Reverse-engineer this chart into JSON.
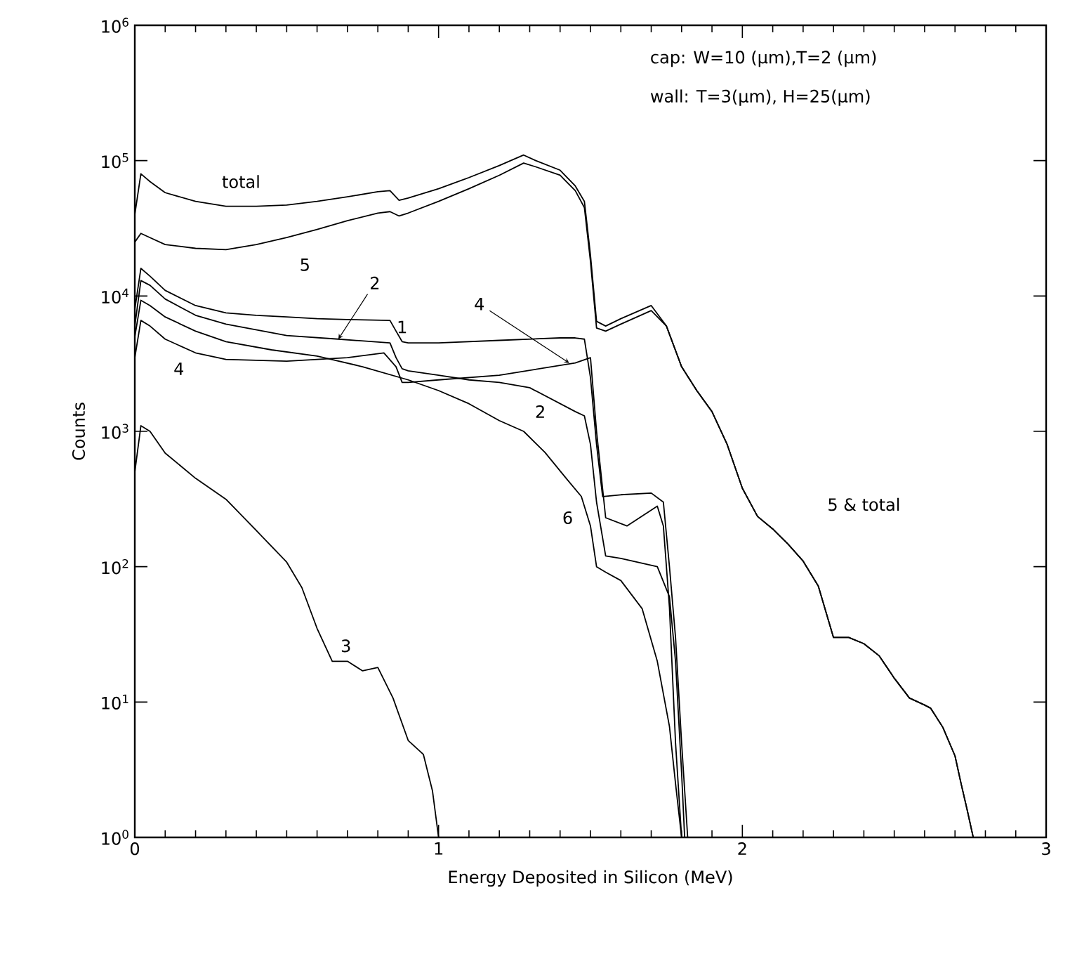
{
  "chart_data": {
    "type": "line",
    "xlabel": "Energy Deposited in Silicon (MeV)",
    "ylabel": "Counts",
    "log": "y",
    "marker": "none",
    "line_style": "solid",
    "xlim": [
      0,
      3
    ],
    "ylim": [
      1,
      1000000
    ],
    "xticks": [
      0,
      1,
      2,
      3
    ],
    "yticks": [
      {
        "value": 1,
        "label": "10$^{0}$"
      },
      {
        "value": 10,
        "label": "10$^{1}$"
      },
      {
        "value": 100,
        "label": "10$^{2}$"
      },
      {
        "value": 1000,
        "label": "10$^{3}$"
      },
      {
        "value": 10000,
        "label": "10$^{4}$"
      },
      {
        "value": 100000,
        "label": "10$^{5}$"
      },
      {
        "value": 1000000,
        "label": "10$^{6}$"
      }
    ],
    "annotations": [
      "cap:  W=10 (μm),T=2 (μm)",
      "wall:  T=3(μm),  H=25(μm)",
      "5  &  total",
      {
        "text": "2",
        "x": 0.67,
        "y": 4800
      },
      {
        "text": "4",
        "x": 1.43,
        "y": 3200
      }
    ],
    "series": [
      {
        "name": "total",
        "color": "#000000",
        "x": [
          0.0,
          0.02,
          0.05,
          0.1,
          0.2,
          0.3,
          0.4,
          0.5,
          0.6,
          0.7,
          0.8,
          0.84,
          0.87,
          0.9,
          1.0,
          1.1,
          1.2,
          1.28,
          1.32,
          1.4,
          1.45,
          1.48,
          1.5,
          1.52,
          1.55,
          1.6,
          1.7,
          1.75,
          1.8,
          1.85,
          1.9,
          1.95,
          2.0,
          2.05,
          2.1,
          2.15,
          2.2,
          2.25,
          2.3,
          2.35,
          2.4,
          2.45,
          2.5,
          2.55,
          2.6,
          2.62,
          2.66,
          2.7,
          2.72,
          2.74,
          2.76
        ],
        "values": [
          40000,
          80000,
          70000,
          58000,
          50000,
          46000,
          46000,
          47000,
          50000,
          54000,
          59000,
          60000,
          51000,
          53000,
          62000,
          75000,
          92000,
          110000,
          100000,
          85000,
          65000,
          50000,
          20000,
          6500,
          6000,
          6800,
          8500,
          6000,
          3000,
          2000,
          1400,
          800,
          380,
          235,
          190,
          147,
          110,
          72,
          30,
          30,
          27,
          22,
          15,
          10.7,
          9.5,
          9,
          6.5,
          4,
          2.5,
          1.6,
          1
        ]
      },
      {
        "name": "5",
        "color": "#000000",
        "x": [
          0.0,
          0.02,
          0.05,
          0.1,
          0.2,
          0.3,
          0.4,
          0.5,
          0.6,
          0.7,
          0.8,
          0.84,
          0.87,
          0.9,
          1.0,
          1.1,
          1.2,
          1.28,
          1.32,
          1.4,
          1.45,
          1.48,
          1.5,
          1.52,
          1.55,
          1.6,
          1.7,
          1.75,
          1.8,
          1.85,
          1.9,
          1.95,
          2.0,
          2.05,
          2.1,
          2.15,
          2.2,
          2.25,
          2.3,
          2.35,
          2.4,
          2.45,
          2.5,
          2.55,
          2.6,
          2.62,
          2.66,
          2.7,
          2.72,
          2.74,
          2.76
        ],
        "values": [
          25000,
          29000,
          27000,
          24000,
          22500,
          22000,
          24000,
          27000,
          31000,
          36000,
          41000,
          42000,
          39000,
          41000,
          50000,
          62000,
          78000,
          96000,
          90000,
          78000,
          60000,
          45000,
          18000,
          5800,
          5500,
          6200,
          7800,
          6000,
          3000,
          2000,
          1400,
          800,
          380,
          235,
          190,
          147,
          110,
          72,
          30,
          30,
          27,
          22,
          15,
          10.7,
          9.5,
          9,
          6.5,
          4,
          2.5,
          1.6,
          1
        ]
      },
      {
        "name": "1",
        "color": "#000000",
        "x": [
          0.0,
          0.02,
          0.05,
          0.1,
          0.2,
          0.3,
          0.4,
          0.5,
          0.6,
          0.7,
          0.84,
          0.86,
          0.88,
          0.9,
          1.0,
          1.2,
          1.4,
          1.45,
          1.48,
          1.5,
          1.52,
          1.54,
          1.6,
          1.7,
          1.74,
          1.76,
          1.78,
          1.8,
          1.82
        ],
        "values": [
          8000,
          16000,
          14000,
          11000,
          8500,
          7500,
          7200,
          7000,
          6800,
          6700,
          6600,
          5500,
          4600,
          4500,
          4500,
          4700,
          4900,
          4900,
          4800,
          2500,
          800,
          330,
          340,
          350,
          300,
          100,
          30,
          5,
          1
        ]
      },
      {
        "name": "2",
        "color": "#000000",
        "x": [
          0.0,
          0.02,
          0.05,
          0.1,
          0.2,
          0.3,
          0.5,
          0.67,
          0.84,
          0.86,
          0.88,
          0.9,
          1.0,
          1.1,
          1.2,
          1.3,
          1.45,
          1.48,
          1.5,
          1.52,
          1.55,
          1.6,
          1.72,
          1.76,
          1.78,
          1.8,
          1.81
        ],
        "values": [
          6000,
          13000,
          12000,
          9500,
          7200,
          6200,
          5100,
          4800,
          4500,
          3500,
          2900,
          2800,
          2600,
          2400,
          2300,
          2100,
          1400,
          1300,
          800,
          300,
          120,
          115,
          100,
          60,
          20,
          3,
          1
        ]
      },
      {
        "name": "4",
        "color": "#000000",
        "x": [
          0.0,
          0.02,
          0.05,
          0.1,
          0.2,
          0.3,
          0.5,
          0.7,
          0.82,
          0.86,
          0.88,
          0.9,
          1.0,
          1.2,
          1.45,
          1.5,
          1.52,
          1.55,
          1.62,
          1.72,
          1.74,
          1.76,
          1.78,
          1.8
        ],
        "values": [
          3500,
          6600,
          6000,
          4800,
          3800,
          3400,
          3300,
          3500,
          3800,
          3000,
          2300,
          2300,
          2400,
          2600,
          3200,
          3500,
          1000,
          230,
          200,
          280,
          200,
          50,
          5,
          1
        ]
      },
      {
        "name": "6",
        "color": "#000000",
        "x": [
          0.0,
          0.02,
          0.05,
          0.1,
          0.2,
          0.3,
          0.45,
          0.6,
          0.75,
          0.9,
          1.0,
          1.1,
          1.2,
          1.28,
          1.35,
          1.42,
          1.47,
          1.5,
          1.52,
          1.55,
          1.6,
          1.67,
          1.72,
          1.76,
          1.78,
          1.8
        ],
        "values": [
          5000,
          9300,
          8500,
          7000,
          5500,
          4600,
          4000,
          3600,
          3000,
          2400,
          2000,
          1600,
          1200,
          1000,
          700,
          450,
          330,
          200,
          100,
          91,
          79,
          49,
          20,
          6.6,
          2.5,
          1
        ]
      },
      {
        "name": "3",
        "color": "#000000",
        "x": [
          0.0,
          0.02,
          0.05,
          0.1,
          0.2,
          0.3,
          0.4,
          0.5,
          0.55,
          0.6,
          0.65,
          0.7,
          0.75,
          0.8,
          0.85,
          0.9,
          0.95,
          0.98,
          1.0
        ],
        "values": [
          500,
          1100,
          1000,
          690,
          450,
          315,
          185,
          108,
          70,
          35,
          20,
          20,
          17,
          18,
          10.7,
          5.2,
          4.1,
          2.2,
          1
        ]
      }
    ]
  }
}
